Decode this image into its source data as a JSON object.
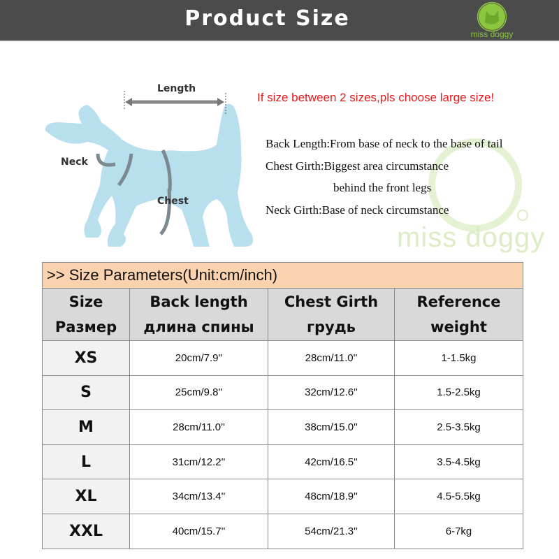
{
  "header": {
    "title": "Product Size",
    "logo_text": "miss doggy"
  },
  "diagram": {
    "labels": {
      "length": "Length",
      "neck": "Neck",
      "chest": "Chest"
    }
  },
  "notice": "If size between 2 sizes,pls choose large size!",
  "definitions": [
    "Back Length:From base of neck to the base of tail",
    "Chest Girth:Biggest area circumstance",
    "behind the front legs",
    "Neck Girth:Base of neck circumstance"
  ],
  "watermark": {
    "text": "miss doggy",
    "registered": "®"
  },
  "colors": {
    "header_bg": "#4b4b4b",
    "notice": "#e31b1b",
    "table_caption_bg": "#fad3ae",
    "table_header_bg": "#d9d9d9",
    "dog": "#b7dfee",
    "brand_green": "#8cc63f"
  },
  "table": {
    "caption": ">> Size Parameters(Unit:cm/inch)",
    "headers": [
      [
        "Size",
        "Размер"
      ],
      [
        "Back length",
        "длина спины"
      ],
      [
        "Chest Girth",
        "грудь"
      ],
      [
        "Reference",
        "weight"
      ]
    ],
    "rows": [
      [
        "XS",
        "20cm/7.9''",
        "28cm/11.0''",
        "1-1.5kg"
      ],
      [
        "S",
        "25cm/9.8''",
        "32cm/12.6''",
        "1.5-2.5kg"
      ],
      [
        "M",
        "28cm/11.0''",
        "38cm/15.0''",
        "2.5-3.5kg"
      ],
      [
        "L",
        "31cm/12.2''",
        "42cm/16.5''",
        "3.5-4.5kg"
      ],
      [
        "XL",
        "34cm/13.4''",
        "48cm/18.9''",
        "4.5-5.5kg"
      ],
      [
        "XXL",
        "40cm/15.7''",
        "54cm/21.3''",
        "6-7kg"
      ]
    ]
  }
}
